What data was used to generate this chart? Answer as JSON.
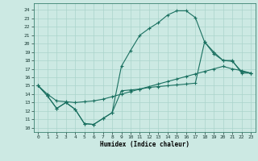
{
  "title": "",
  "xlabel": "Humidex (Indice chaleur)",
  "xlim": [
    -0.5,
    23.5
  ],
  "ylim": [
    9.5,
    24.8
  ],
  "xticks": [
    0,
    1,
    2,
    3,
    4,
    5,
    6,
    7,
    8,
    9,
    10,
    11,
    12,
    13,
    14,
    15,
    16,
    17,
    18,
    19,
    20,
    21,
    22,
    23
  ],
  "yticks": [
    10,
    11,
    12,
    13,
    14,
    15,
    16,
    17,
    18,
    19,
    20,
    21,
    22,
    23,
    24
  ],
  "background_color": "#cce9e3",
  "grid_color": "#aad4cc",
  "line_color": "#1a7060",
  "line1_x": [
    0,
    1,
    2,
    3,
    4,
    5,
    6,
    7,
    8,
    9,
    10,
    11,
    12,
    13,
    14,
    15,
    16,
    17,
    18,
    19,
    20,
    21,
    22,
    23
  ],
  "line1_y": [
    15.0,
    13.8,
    12.3,
    13.0,
    12.2,
    10.5,
    10.4,
    11.1,
    11.8,
    14.4,
    14.5,
    14.6,
    14.8,
    14.9,
    15.0,
    15.1,
    15.2,
    15.3,
    20.2,
    18.8,
    18.0,
    17.9,
    16.7,
    16.5
  ],
  "line2_x": [
    0,
    1,
    2,
    3,
    4,
    5,
    6,
    7,
    8,
    9,
    10,
    11,
    12,
    13,
    14,
    15,
    16,
    17,
    18,
    19,
    20,
    21,
    22,
    23
  ],
  "line2_y": [
    15.0,
    13.8,
    12.3,
    13.0,
    12.2,
    10.5,
    10.4,
    11.1,
    11.8,
    17.3,
    19.2,
    21.0,
    21.8,
    22.5,
    23.4,
    23.9,
    23.9,
    23.1,
    20.2,
    19.0,
    18.0,
    18.0,
    16.5,
    16.5
  ],
  "line3_x": [
    0,
    1,
    2,
    3,
    4,
    5,
    6,
    7,
    8,
    9,
    10,
    11,
    12,
    13,
    14,
    15,
    16,
    17,
    18,
    19,
    20,
    21,
    22,
    23
  ],
  "line3_y": [
    15.0,
    14.0,
    13.2,
    13.1,
    13.0,
    13.1,
    13.2,
    13.4,
    13.7,
    14.0,
    14.3,
    14.6,
    14.9,
    15.2,
    15.5,
    15.8,
    16.1,
    16.4,
    16.7,
    17.0,
    17.3,
    17.0,
    16.8,
    16.5
  ]
}
